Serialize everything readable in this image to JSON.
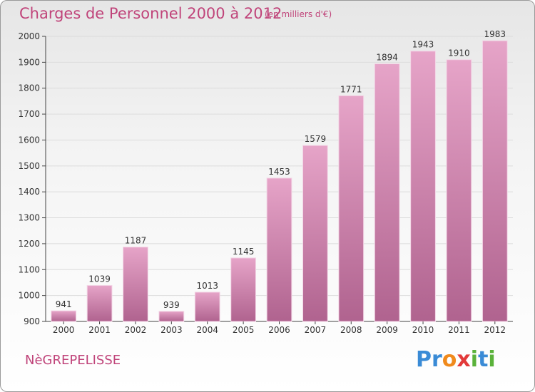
{
  "title": "Charges de Personnel 2000 à 2012",
  "subtitle": "(en milliers d'€)",
  "commune": "NèGREPELISSE",
  "logo": {
    "letters": [
      "P",
      "r",
      "o",
      "x",
      "i",
      "t",
      "i"
    ],
    "colors": [
      "#3a8bd6",
      "#3a8bd6",
      "#f08a1c",
      "#e23a3a",
      "#5ab23a",
      "#3a8bd6",
      "#5ab23a"
    ]
  },
  "colors": {
    "bar_top": "#e6a4c8",
    "bar_bottom": "#b0638f",
    "text": "#c0447a",
    "grid": "#dcdcdc"
  },
  "chart_data": {
    "type": "bar",
    "title": "Charges de Personnel 2000 à 2012",
    "subtitle": "(en milliers d'€)",
    "categories": [
      "2000",
      "2001",
      "2002",
      "2003",
      "2004",
      "2005",
      "2006",
      "2007",
      "2008",
      "2009",
      "2010",
      "2011",
      "2012"
    ],
    "values": [
      941,
      1039,
      1187,
      939,
      1013,
      1145,
      1453,
      1579,
      1771,
      1894,
      1943,
      1910,
      1983
    ],
    "ylim": [
      900,
      2000
    ],
    "yticks": [
      900,
      1000,
      1100,
      1200,
      1300,
      1400,
      1500,
      1600,
      1700,
      1800,
      1900,
      2000
    ],
    "grid": true,
    "xlabel": "",
    "ylabel": ""
  }
}
